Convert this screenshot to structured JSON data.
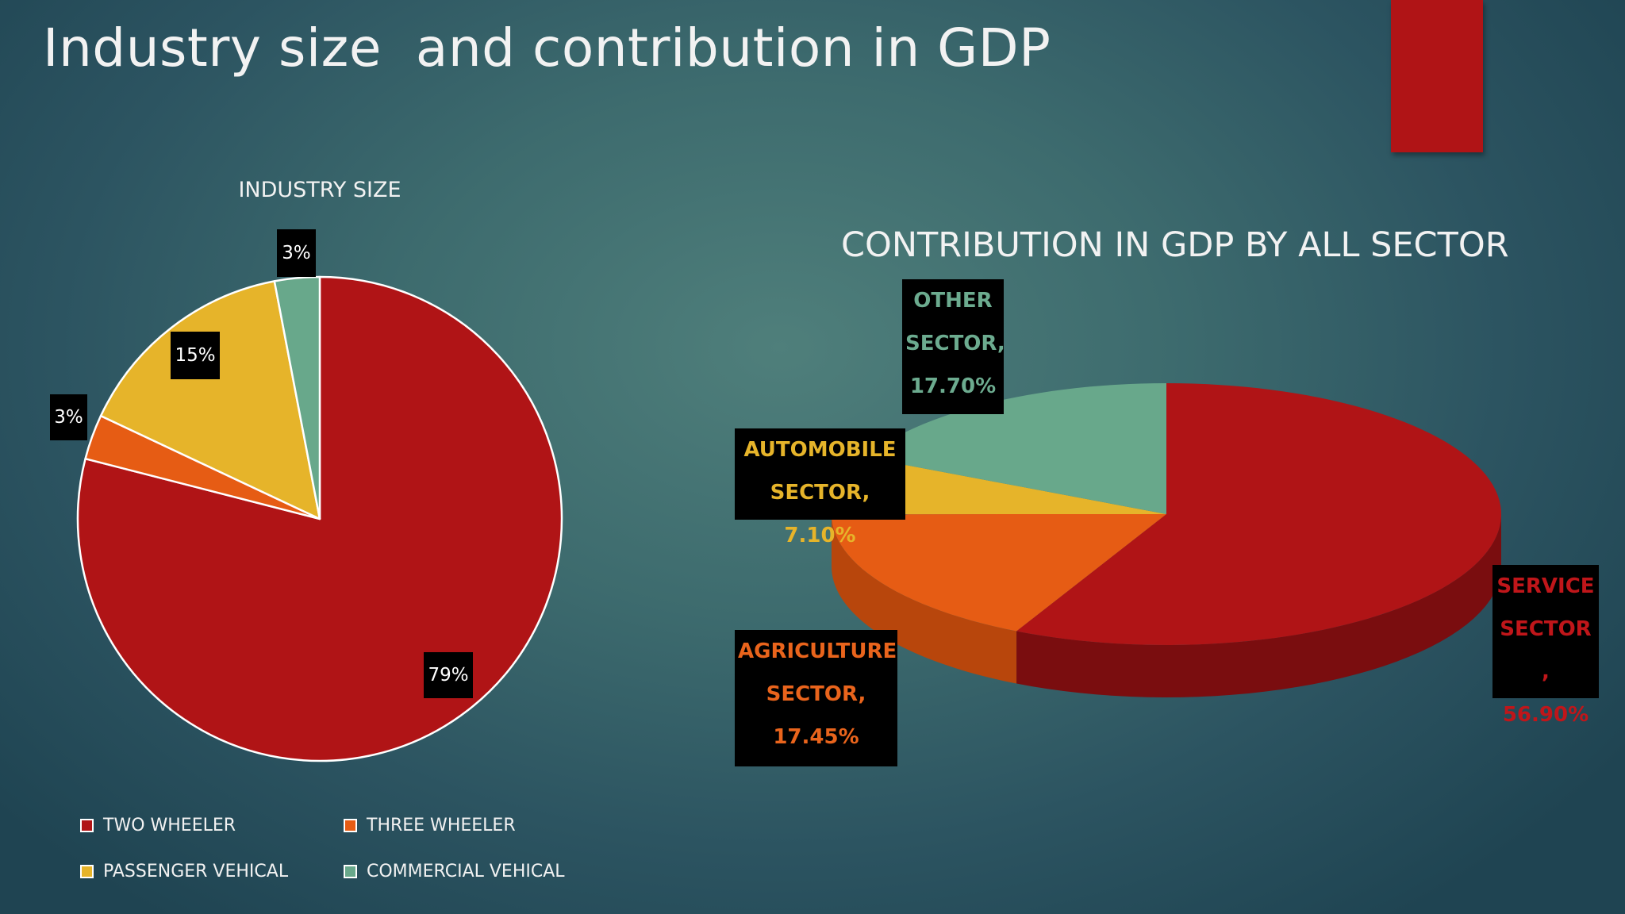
{
  "slide": {
    "title": "Industry size  and contribution in GDP",
    "accent_color": "#b01416"
  },
  "chart_data": [
    {
      "type": "pie",
      "title": "INDUSTRY SIZE",
      "legend_position": "bottom",
      "start_angle_deg": 0,
      "direction": "clockwise",
      "slices": [
        {
          "name": "TWO WHEELER",
          "value": 79,
          "label": "79%",
          "color": "#b01416"
        },
        {
          "name": "THREE WHEELER",
          "value": 3,
          "label": "3%",
          "color": "#e65c14"
        },
        {
          "name": "PASSENGER VEHICAL",
          "value": 15,
          "label": "15%",
          "color": "#e6b42a"
        },
        {
          "name": "COMMERCIAL VEHICAL",
          "value": 3,
          "label": "3%",
          "color": "#68a88b"
        }
      ],
      "legend": [
        {
          "label": "TWO WHEELER",
          "color": "#b01416"
        },
        {
          "label": "THREE WHEELER",
          "color": "#e65c14"
        },
        {
          "label": "PASSENGER VEHICAL",
          "color": "#e6b42a"
        },
        {
          "label": "COMMERCIAL VEHICAL",
          "color": "#68a88b"
        }
      ]
    },
    {
      "type": "pie",
      "style": "3d",
      "title": "CONTRIBUTION IN GDP BY ALL SECTOR",
      "start_angle_deg": 0,
      "direction": "clockwise",
      "slices": [
        {
          "name": "SERVICE SECTOR",
          "value": 56.9,
          "label_lines": [
            "SERVICE",
            "SECTOR ,",
            "56.90%"
          ],
          "color": "#b01416",
          "side_color": "#7a0d0f"
        },
        {
          "name": "AGRICULTURE SECTOR",
          "value": 17.45,
          "label_lines": [
            "AGRICULTURE",
            "SECTOR,",
            "17.45%"
          ],
          "color": "#e65c14",
          "side_color": "#b8460c"
        },
        {
          "name": "AUTOMOBILE SECTOR",
          "value": 7.1,
          "label_lines": [
            "AUTOMOBILE",
            "SECTOR, 7.10%"
          ],
          "color": "#e6b42a",
          "side_color": "#b48a1c"
        },
        {
          "name": "OTHER SECTOR",
          "value": 17.7,
          "label_lines": [
            "OTHER",
            "SECTOR,",
            "17.70%"
          ],
          "color": "#68a88b",
          "side_color": "#4d8068"
        }
      ]
    }
  ]
}
